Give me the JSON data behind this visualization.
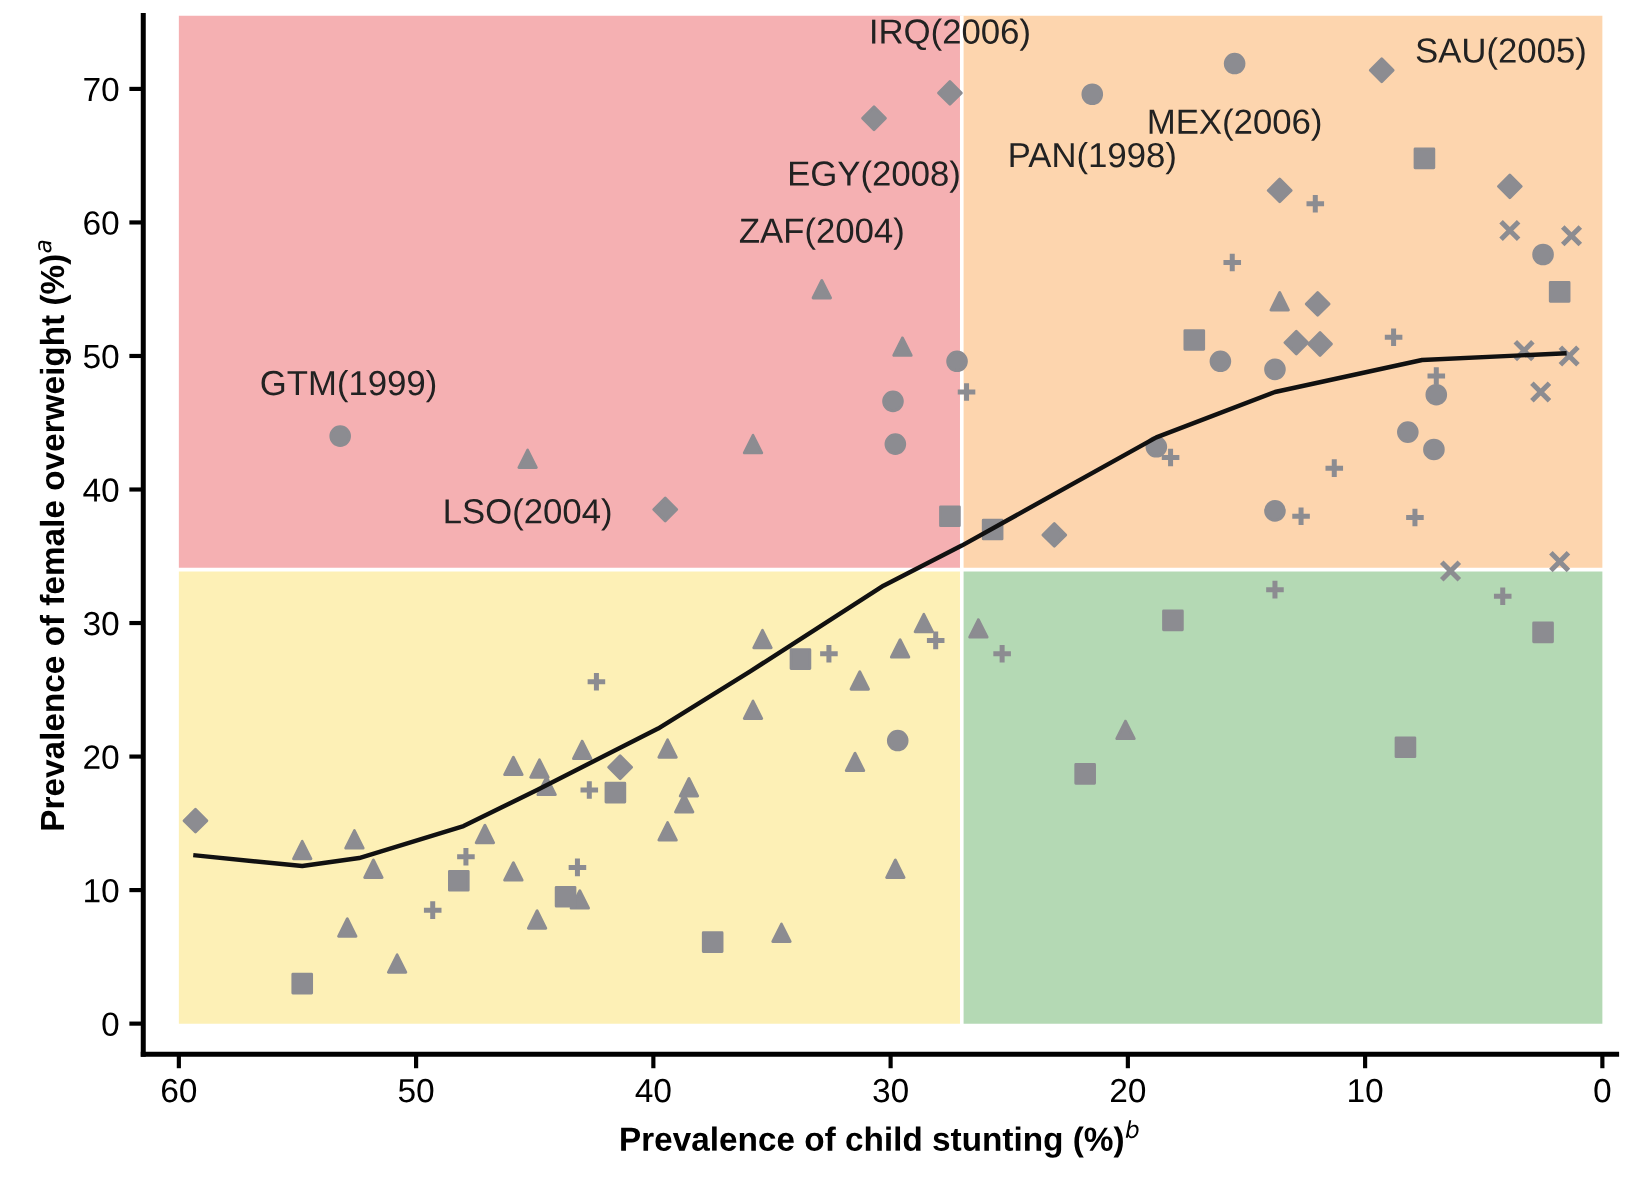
{
  "chart_data": {
    "type": "scatter",
    "xlabel": "Prevalence of child stunting (%)$^{b}$",
    "ylabel": "Prevalence of female overweight (%)$^{a}$",
    "xlim": [
      61.5,
      -0.6
    ],
    "ylim": [
      -2.3,
      75.5
    ],
    "xticks": [
      60,
      50,
      40,
      30,
      20,
      10,
      0
    ],
    "yticks": [
      0,
      10,
      20,
      30,
      40,
      50,
      60,
      70
    ],
    "grid": false,
    "legend": false,
    "ref_lines": [
      {
        "axis": "x",
        "value": 27,
        "color": "#ffffff"
      },
      {
        "axis": "y",
        "value": 34,
        "color": "#ffffff"
      }
    ],
    "series": [
      {
        "type": "scatter",
        "marker": "circle",
        "color": "#8c8c91",
        "x": [
          53.2,
          21.5,
          15.5,
          2.5,
          16.1,
          13.8,
          7.0,
          27.2,
          29.9,
          29.8,
          8.2,
          7.1,
          18.8,
          13.8,
          29.7
        ],
        "values": [
          44.0,
          69.6,
          71.9,
          57.6,
          49.6,
          49.0,
          47.1,
          49.6,
          46.6,
          43.4,
          44.3,
          43.0,
          43.2,
          38.4,
          21.2
        ]
      },
      {
        "type": "scatter",
        "marker": "diamond",
        "color": "#8c8c91",
        "x": [
          39.5,
          30.7,
          27.5,
          9.3,
          3.9,
          13.6,
          12.0,
          12.9,
          11.9,
          23.1,
          59.3,
          41.4
        ],
        "values": [
          38.5,
          67.8,
          69.7,
          71.4,
          62.7,
          62.4,
          53.9,
          51.0,
          50.9,
          36.6,
          15.2,
          19.2
        ]
      },
      {
        "type": "scatter",
        "marker": "triangle",
        "color": "#8c8c91",
        "x": [
          45.3,
          35.8,
          32.9,
          13.6,
          29.5,
          20.1,
          26.3,
          28.6,
          29.6,
          29.8,
          54.8,
          52.6,
          51.8,
          52.9,
          50.8,
          47.1,
          45.9,
          45.9,
          44.8,
          44.5,
          44.9,
          43.0,
          43.1,
          39.4,
          39.4,
          38.5,
          38.7,
          35.8,
          35.4,
          34.6,
          31.3,
          31.5
        ],
        "values": [
          42.3,
          43.4,
          55.0,
          54.1,
          50.7,
          22.0,
          29.6,
          30.0,
          28.1,
          11.6,
          13.0,
          13.8,
          11.6,
          7.2,
          4.5,
          14.2,
          19.3,
          11.4,
          19.1,
          17.8,
          7.8,
          20.5,
          9.3,
          20.6,
          14.4,
          17.7,
          16.5,
          23.5,
          28.8,
          6.8,
          25.7,
          19.6
        ]
      },
      {
        "type": "scatter",
        "marker": "square",
        "color": "#8c8c91",
        "x": [
          7.5,
          1.8,
          17.2,
          27.5,
          25.7,
          18.1,
          2.5,
          21.8,
          8.3,
          54.8,
          48.2,
          43.7,
          41.6,
          37.5,
          33.8
        ],
        "values": [
          64.8,
          54.8,
          51.2,
          38.0,
          37.0,
          30.2,
          29.3,
          18.7,
          20.7,
          3.0,
          10.7,
          9.5,
          17.3,
          6.1,
          27.3
        ]
      },
      {
        "type": "scatter",
        "marker": "plus",
        "color": "#8c8c91",
        "x": [
          12.1,
          15.6,
          8.8,
          7.0,
          26.8,
          18.2,
          11.3,
          12.7,
          7.9,
          13.8,
          4.2,
          25.3,
          28.1,
          49.3,
          47.9,
          43.2,
          42.7,
          42.4,
          32.6
        ],
        "values": [
          61.4,
          57.0,
          51.4,
          48.5,
          47.3,
          42.4,
          41.6,
          38.0,
          37.9,
          32.5,
          32.0,
          27.7,
          28.7,
          8.5,
          12.5,
          11.7,
          17.5,
          25.6,
          27.7
        ]
      },
      {
        "type": "scatter",
        "marker": "cross",
        "color": "#8c8c91",
        "x": [
          3.9,
          1.3,
          3.3,
          1.4,
          2.6,
          6.4,
          1.8
        ],
        "values": [
          59.4,
          59.0,
          50.4,
          50.0,
          47.3,
          33.9,
          34.6
        ]
      },
      {
        "type": "line",
        "color": "#111111",
        "line_style": "solid",
        "x": [
          59.3,
          54.8,
          52.4,
          48.0,
          44.9,
          39.8,
          35.9,
          30.3,
          27.0,
          18.8,
          13.8,
          7.6,
          1.6
        ],
        "values": [
          12.6,
          11.8,
          12.4,
          14.8,
          17.5,
          22.1,
          26.4,
          32.8,
          35.8,
          43.9,
          47.3,
          49.7,
          50.2
        ]
      }
    ],
    "annotations": [
      {
        "text": "GTM(1999)",
        "x": 53.2,
        "y": 44.0
      },
      {
        "text": "LSO(2004)",
        "x": 45.3,
        "y": 42.3
      },
      {
        "text": "ZAF(2004)",
        "x": 32.9,
        "y": 55.0
      },
      {
        "text": "EGY(2008)",
        "x": 30.7,
        "y": 67.8
      },
      {
        "text": "IRQ(2006)",
        "x": 27.5,
        "y": 69.7
      },
      {
        "text": "PAN(1998)",
        "x": 21.5,
        "y": 69.6
      },
      {
        "text": "MEX(2006)",
        "x": 15.5,
        "y": 71.9
      },
      {
        "text": "SAU(2005)",
        "x": 9.3,
        "y": 71.4
      }
    ]
  }
}
